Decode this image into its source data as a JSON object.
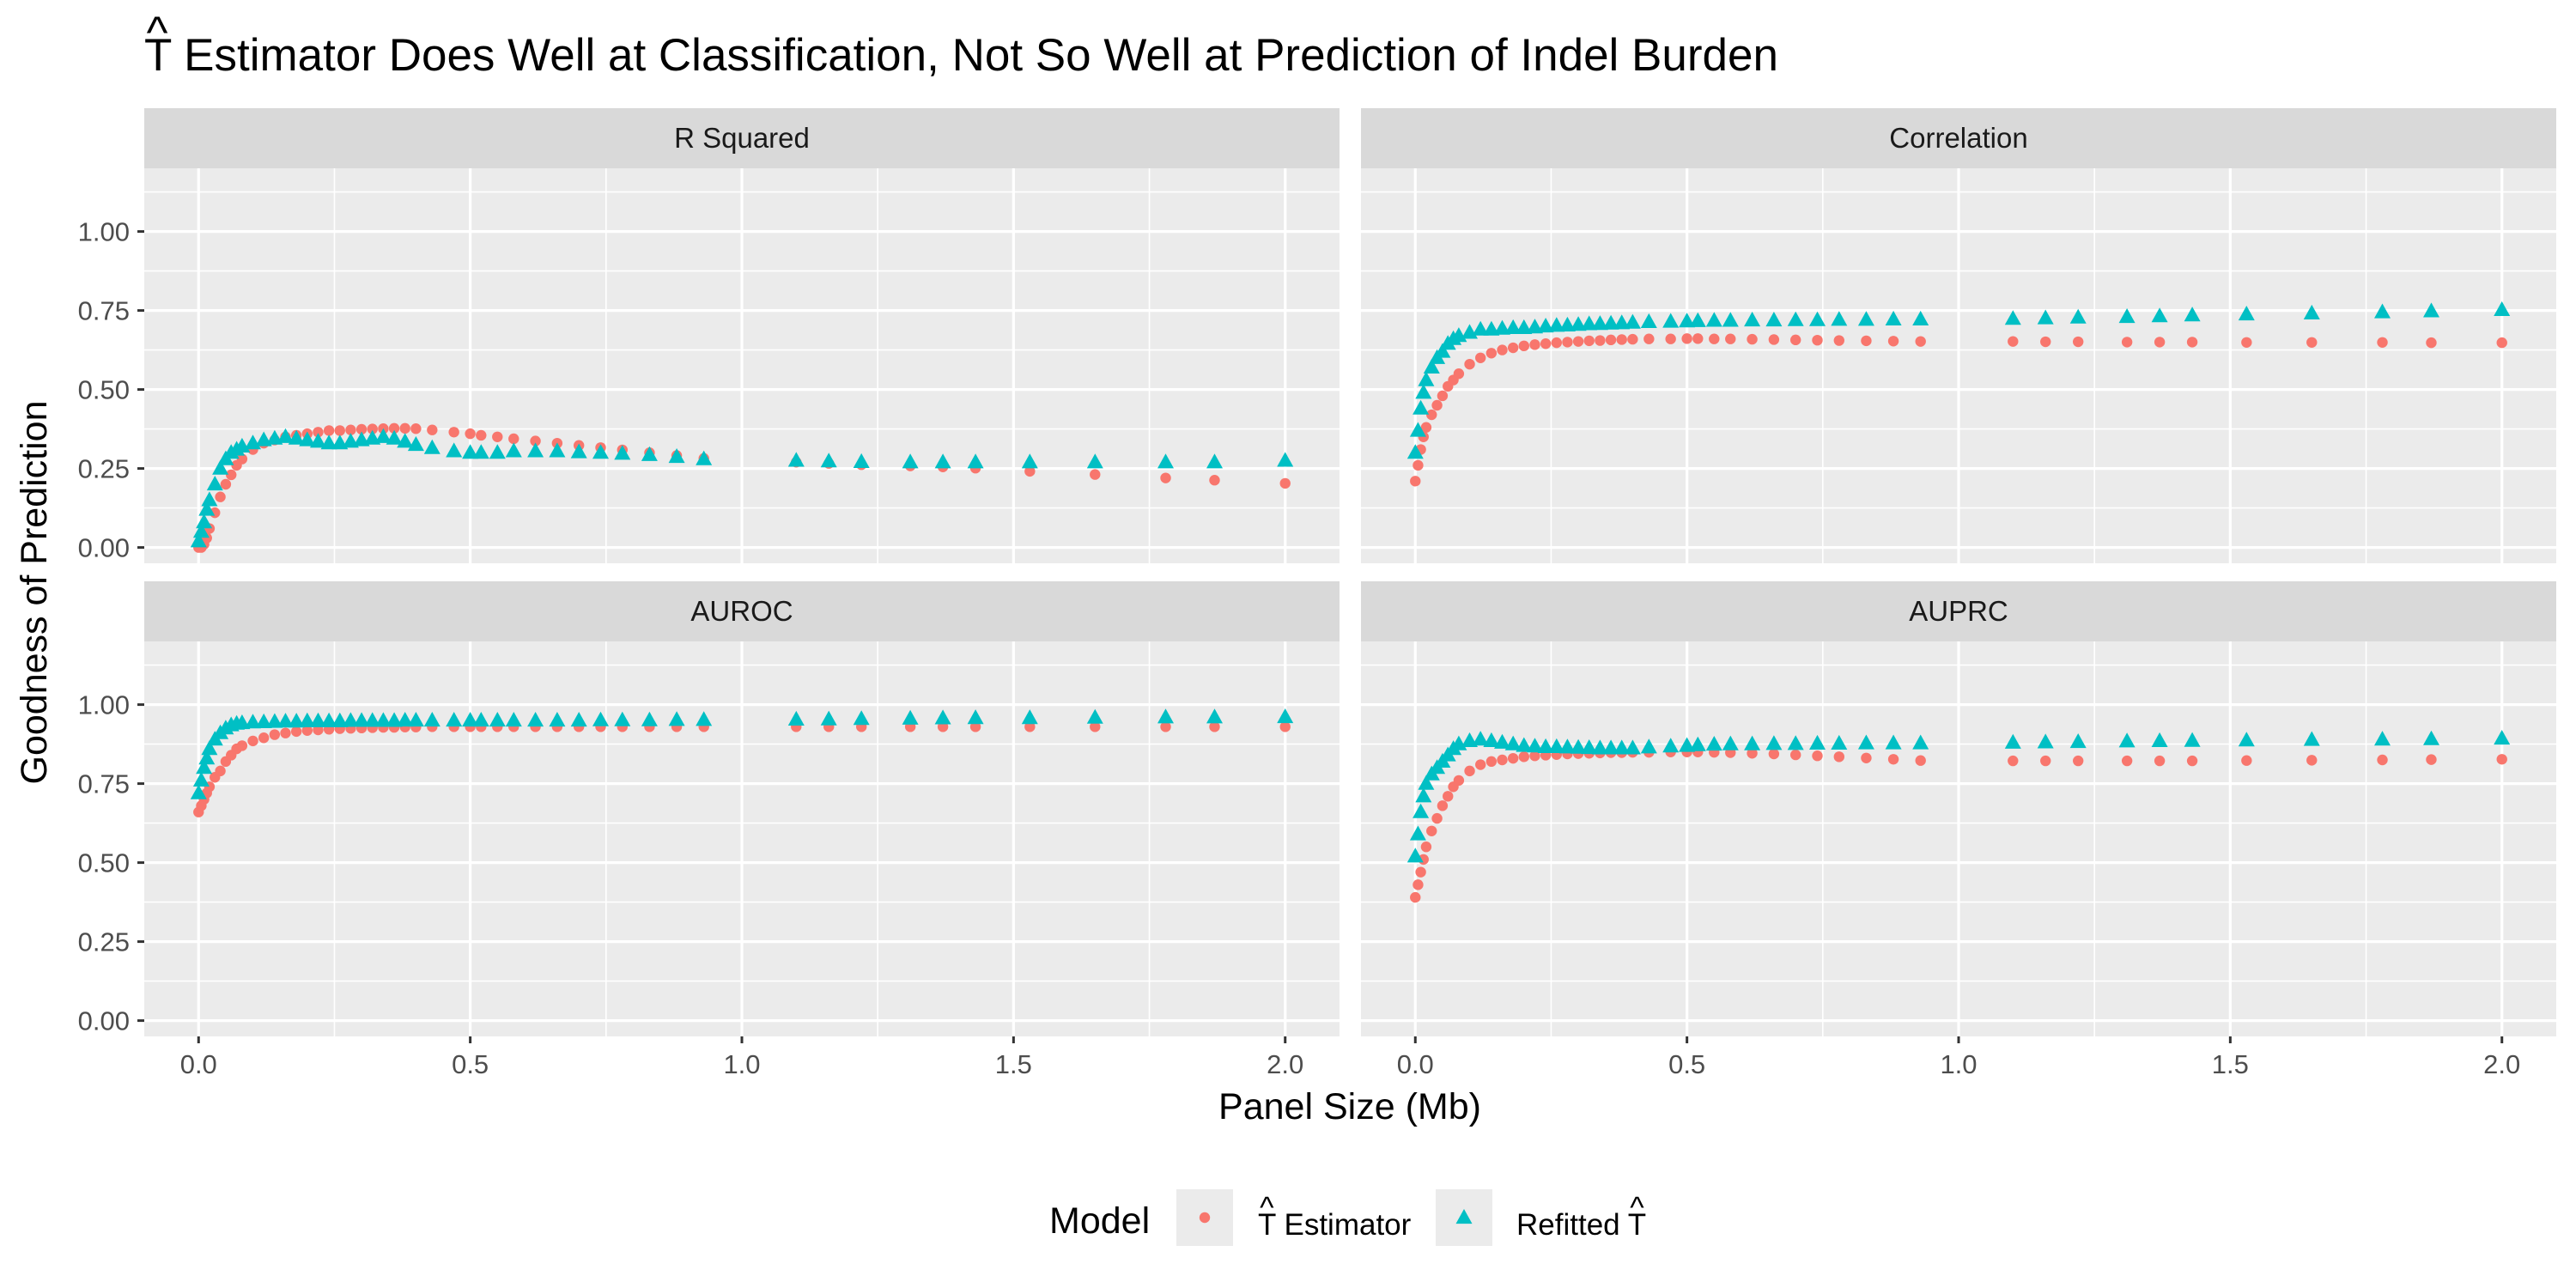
{
  "chart_data": {
    "type": "scatter",
    "title": "T̂ Estimator Does Well at Classification, Not So Well at Prediction of Indel Burden",
    "title_hat_letter": "T",
    "title_rest": " Estimator Does Well at Classification, Not So Well at Prediction of Indel Burden",
    "xlabel": "Panel Size (Mb)",
    "ylabel": "Goodness of Prediction",
    "xlim": [
      -0.1,
      2.1
    ],
    "ylim": [
      -0.05,
      1.2
    ],
    "x_ticks": [
      0.0,
      0.5,
      1.0,
      1.5,
      2.0
    ],
    "x_tick_labels": [
      "0.0",
      "0.5",
      "1.0",
      "1.5",
      "2.0"
    ],
    "y_ticks": [
      0.0,
      0.25,
      0.5,
      0.75,
      1.0
    ],
    "y_tick_labels": [
      "0.00",
      "0.25",
      "0.50",
      "0.75",
      "1.00"
    ],
    "grid": true,
    "legend_placement": "bottom",
    "legend": {
      "title": "Model",
      "entries": [
        {
          "series": "estimator",
          "label": "T̂ Estimator",
          "letter": "T",
          "rest": " Estimator",
          "prefix": "",
          "shape": "circle"
        },
        {
          "series": "refitted",
          "label": "Refitted T̂",
          "letter": "T",
          "rest": "",
          "prefix": "Refitted ",
          "shape": "triangle"
        }
      ]
    },
    "colors": {
      "estimator": "#F8766D",
      "refitted": "#00BFC4",
      "panel_bg": "#EBEBEB",
      "strip_bg": "#D9D9D9",
      "grid": "#FFFFFF"
    },
    "x": [
      0.0,
      0.005,
      0.01,
      0.015,
      0.02,
      0.03,
      0.04,
      0.05,
      0.06,
      0.07,
      0.08,
      0.1,
      0.12,
      0.14,
      0.16,
      0.18,
      0.2,
      0.22,
      0.24,
      0.26,
      0.28,
      0.3,
      0.32,
      0.34,
      0.36,
      0.38,
      0.4,
      0.43,
      0.47,
      0.5,
      0.52,
      0.55,
      0.58,
      0.62,
      0.66,
      0.7,
      0.74,
      0.78,
      0.83,
      0.88,
      0.93,
      1.1,
      1.16,
      1.22,
      1.31,
      1.37,
      1.43,
      1.53,
      1.65,
      1.78,
      1.87,
      2.0
    ],
    "panels": [
      {
        "strip": "R Squared",
        "series": [
          {
            "name": "T̂ Estimator",
            "key": "estimator",
            "values": [
              0.0,
              0.0,
              0.01,
              0.03,
              0.06,
              0.11,
              0.16,
              0.2,
              0.23,
              0.26,
              0.28,
              0.31,
              0.33,
              0.34,
              0.35,
              0.355,
              0.36,
              0.365,
              0.37,
              0.37,
              0.372,
              0.374,
              0.375,
              0.376,
              0.377,
              0.377,
              0.376,
              0.372,
              0.365,
              0.36,
              0.355,
              0.35,
              0.344,
              0.337,
              0.33,
              0.323,
              0.316,
              0.309,
              0.3,
              0.291,
              0.282,
              0.27,
              0.266,
              0.262,
              0.258,
              0.255,
              0.251,
              0.241,
              0.231,
              0.22,
              0.213,
              0.203
            ]
          },
          {
            "name": "Refitted T̂",
            "key": "refitted",
            "values": [
              0.02,
              0.05,
              0.08,
              0.12,
              0.15,
              0.2,
              0.25,
              0.28,
              0.3,
              0.31,
              0.32,
              0.33,
              0.34,
              0.345,
              0.35,
              0.345,
              0.34,
              0.335,
              0.33,
              0.33,
              0.335,
              0.34,
              0.345,
              0.35,
              0.345,
              0.335,
              0.325,
              0.315,
              0.305,
              0.3,
              0.3,
              0.3,
              0.305,
              0.305,
              0.305,
              0.302,
              0.3,
              0.297,
              0.293,
              0.287,
              0.28,
              0.275,
              0.273,
              0.271,
              0.27,
              0.27,
              0.27,
              0.27,
              0.27,
              0.27,
              0.27,
              0.275
            ]
          }
        ]
      },
      {
        "strip": "Correlation",
        "series": [
          {
            "name": "T̂ Estimator",
            "key": "estimator",
            "values": [
              0.21,
              0.26,
              0.31,
              0.35,
              0.38,
              0.42,
              0.45,
              0.48,
              0.51,
              0.53,
              0.55,
              0.58,
              0.6,
              0.615,
              0.625,
              0.632,
              0.638,
              0.642,
              0.645,
              0.648,
              0.65,
              0.652,
              0.654,
              0.655,
              0.657,
              0.658,
              0.659,
              0.66,
              0.66,
              0.661,
              0.661,
              0.66,
              0.66,
              0.659,
              0.658,
              0.657,
              0.656,
              0.655,
              0.654,
              0.653,
              0.652,
              0.652,
              0.651,
              0.651,
              0.65,
              0.65,
              0.65,
              0.649,
              0.649,
              0.649,
              0.648,
              0.648
            ]
          },
          {
            "name": "Refitted T̂",
            "key": "refitted",
            "values": [
              0.3,
              0.37,
              0.44,
              0.49,
              0.53,
              0.57,
              0.6,
              0.62,
              0.645,
              0.66,
              0.67,
              0.68,
              0.69,
              0.69,
              0.693,
              0.695,
              0.695,
              0.697,
              0.7,
              0.702,
              0.703,
              0.705,
              0.707,
              0.708,
              0.709,
              0.71,
              0.712,
              0.714,
              0.715,
              0.716,
              0.717,
              0.718,
              0.718,
              0.719,
              0.719,
              0.72,
              0.72,
              0.721,
              0.721,
              0.722,
              0.722,
              0.724,
              0.726,
              0.728,
              0.73,
              0.732,
              0.735,
              0.738,
              0.741,
              0.745,
              0.748,
              0.752
            ]
          }
        ]
      },
      {
        "strip": "AUROC",
        "series": [
          {
            "name": "T̂ Estimator",
            "key": "estimator",
            "values": [
              0.66,
              0.68,
              0.7,
              0.72,
              0.74,
              0.77,
              0.79,
              0.82,
              0.84,
              0.86,
              0.87,
              0.885,
              0.895,
              0.905,
              0.91,
              0.915,
              0.918,
              0.92,
              0.922,
              0.924,
              0.925,
              0.926,
              0.927,
              0.928,
              0.928,
              0.929,
              0.929,
              0.93,
              0.93,
              0.93,
              0.93,
              0.93,
              0.93,
              0.93,
              0.93,
              0.93,
              0.93,
              0.93,
              0.93,
              0.93,
              0.93,
              0.93,
              0.93,
              0.93,
              0.93,
              0.93,
              0.93,
              0.93,
              0.93,
              0.93,
              0.93,
              0.93
            ]
          },
          {
            "name": "Refitted T̂",
            "key": "refitted",
            "values": [
              0.72,
              0.76,
              0.8,
              0.83,
              0.86,
              0.89,
              0.91,
              0.925,
              0.935,
              0.94,
              0.942,
              0.944,
              0.945,
              0.946,
              0.947,
              0.947,
              0.948,
              0.948,
              0.948,
              0.948,
              0.949,
              0.949,
              0.949,
              0.949,
              0.949,
              0.95,
              0.95,
              0.95,
              0.95,
              0.95,
              0.95,
              0.95,
              0.95,
              0.95,
              0.95,
              0.95,
              0.951,
              0.951,
              0.951,
              0.952,
              0.952,
              0.953,
              0.954,
              0.955,
              0.956,
              0.957,
              0.958,
              0.958,
              0.959,
              0.96,
              0.96,
              0.961
            ]
          }
        ]
      },
      {
        "strip": "AUPRC",
        "series": [
          {
            "name": "T̂ Estimator",
            "key": "estimator",
            "values": [
              0.39,
              0.43,
              0.47,
              0.51,
              0.55,
              0.6,
              0.64,
              0.68,
              0.71,
              0.74,
              0.76,
              0.79,
              0.81,
              0.82,
              0.825,
              0.83,
              0.835,
              0.838,
              0.84,
              0.842,
              0.844,
              0.845,
              0.846,
              0.847,
              0.848,
              0.848,
              0.849,
              0.849,
              0.85,
              0.85,
              0.85,
              0.849,
              0.848,
              0.846,
              0.844,
              0.841,
              0.838,
              0.835,
              0.831,
              0.827,
              0.823,
              0.822,
              0.822,
              0.822,
              0.822,
              0.822,
              0.822,
              0.823,
              0.824,
              0.825,
              0.826,
              0.827
            ]
          },
          {
            "name": "Refitted T̂",
            "key": "refitted",
            "values": [
              0.52,
              0.59,
              0.66,
              0.71,
              0.75,
              0.78,
              0.8,
              0.82,
              0.84,
              0.86,
              0.875,
              0.885,
              0.89,
              0.885,
              0.88,
              0.875,
              0.87,
              0.868,
              0.866,
              0.866,
              0.865,
              0.864,
              0.863,
              0.862,
              0.862,
              0.862,
              0.862,
              0.865,
              0.868,
              0.87,
              0.872,
              0.874,
              0.875,
              0.875,
              0.876,
              0.876,
              0.877,
              0.877,
              0.878,
              0.878,
              0.878,
              0.88,
              0.881,
              0.882,
              0.884,
              0.885,
              0.886,
              0.887,
              0.889,
              0.89,
              0.891,
              0.893
            ]
          }
        ]
      }
    ]
  }
}
